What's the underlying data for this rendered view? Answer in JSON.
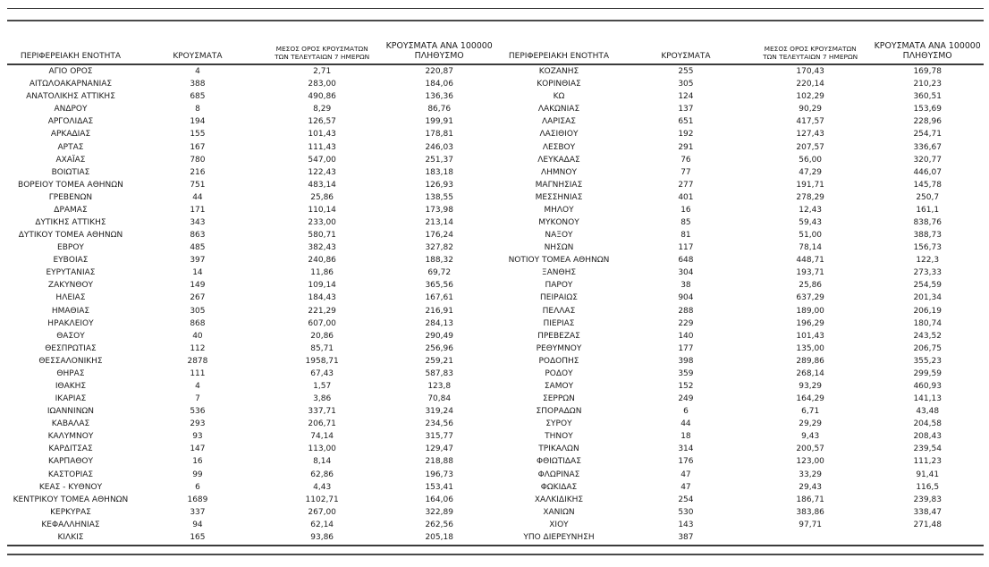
{
  "page": {
    "background_color": "#ffffff",
    "text_color": "#1c1c1c",
    "rule_color": "#3b3b3b"
  },
  "table": {
    "col_headers": [
      "ΠΕΡΙΦΕΡΕΙΑΚΗ ΕΝΟΤΗΤΑ",
      "ΚΡΟΥΣΜΑΤΑ",
      "ΜΕΣΟΣ ΟΡΟΣ ΚΡΟΥΣΜΑΤΩΝ\nΤΩΝ ΤΕΛΕΥΤΑΙΩΝ 7 ΗΜΕΡΩΝ",
      "ΚΡΟΥΣΜΑΤΑ ΑΝΑ 100000\nΠΛΗΘΥΣΜΟ"
    ],
    "left_rows": [
      [
        "ΑΓΙΟ ΟΡΟΣ",
        "4",
        "2,71",
        "220,87"
      ],
      [
        "ΑΙΤΩΛΟΑΚΑΡΝΑΝΙΑΣ",
        "388",
        "283,00",
        "184,06"
      ],
      [
        "ΑΝΑΤΟΛΙΚΗΣ ΑΤΤΙΚΗΣ",
        "685",
        "490,86",
        "136,36"
      ],
      [
        "ΑΝΔΡΟΥ",
        "8",
        "8,29",
        "86,76"
      ],
      [
        "ΑΡΓΟΛΙΔΑΣ",
        "194",
        "126,57",
        "199,91"
      ],
      [
        "ΑΡΚΑΔΙΑΣ",
        "155",
        "101,43",
        "178,81"
      ],
      [
        "ΑΡΤΑΣ",
        "167",
        "111,43",
        "246,03"
      ],
      [
        "ΑΧΑΪΑΣ",
        "780",
        "547,00",
        "251,37"
      ],
      [
        "ΒΟΙΩΤΙΑΣ",
        "216",
        "122,43",
        "183,18"
      ],
      [
        "ΒΟΡΕΙΟΥ ΤΟΜΕΑ ΑΘΗΝΩΝ",
        "751",
        "483,14",
        "126,93"
      ],
      [
        "ΓΡΕΒΕΝΩΝ",
        "44",
        "25,86",
        "138,55"
      ],
      [
        "ΔΡΑΜΑΣ",
        "171",
        "110,14",
        "173,98"
      ],
      [
        "ΔΥΤΙΚΗΣ ΑΤΤΙΚΗΣ",
        "343",
        "233,00",
        "213,14"
      ],
      [
        "ΔΥΤΙΚΟΥ ΤΟΜΕΑ ΑΘΗΝΩΝ",
        "863",
        "580,71",
        "176,24"
      ],
      [
        "ΕΒΡΟΥ",
        "485",
        "382,43",
        "327,82"
      ],
      [
        "ΕΥΒΟΙΑΣ",
        "397",
        "240,86",
        "188,32"
      ],
      [
        "ΕΥΡΥΤΑΝΙΑΣ",
        "14",
        "11,86",
        "69,72"
      ],
      [
        "ΖΑΚΥΝΘΟΥ",
        "149",
        "109,14",
        "365,56"
      ],
      [
        "ΗΛΕΙΑΣ",
        "267",
        "184,43",
        "167,61"
      ],
      [
        "ΗΜΑΘΙΑΣ",
        "305",
        "221,29",
        "216,91"
      ],
      [
        "ΗΡΑΚΛΕΙΟΥ",
        "868",
        "607,00",
        "284,13"
      ],
      [
        "ΘΑΣΟΥ",
        "40",
        "20,86",
        "290,49"
      ],
      [
        "ΘΕΣΠΡΩΤΙΑΣ",
        "112",
        "85,71",
        "256,96"
      ],
      [
        "ΘΕΣΣΑΛΟΝΙΚΗΣ",
        "2878",
        "1958,71",
        "259,21"
      ],
      [
        "ΘΗΡΑΣ",
        "111",
        "67,43",
        "587,83"
      ],
      [
        "ΙΘΑΚΗΣ",
        "4",
        "1,57",
        "123,8"
      ],
      [
        "ΙΚΑΡΙΑΣ",
        "7",
        "3,86",
        "70,84"
      ],
      [
        "ΙΩΑΝΝΙΝΩΝ",
        "536",
        "337,71",
        "319,24"
      ],
      [
        "ΚΑΒΑΛΑΣ",
        "293",
        "206,71",
        "234,56"
      ],
      [
        "ΚΑΛΥΜΝΟΥ",
        "93",
        "74,14",
        "315,77"
      ],
      [
        "ΚΑΡΔΙΤΣΑΣ",
        "147",
        "113,00",
        "129,47"
      ],
      [
        "ΚΑΡΠΑΘΟΥ",
        "16",
        "8,14",
        "218,88"
      ],
      [
        "ΚΑΣΤΟΡΙΑΣ",
        "99",
        "62,86",
        "196,73"
      ],
      [
        "ΚΕΑΣ - ΚΥΘΝΟΥ",
        "6",
        "4,43",
        "153,41"
      ],
      [
        "ΚΕΝΤΡΙΚΟΥ ΤΟΜΕΑ ΑΘΗΝΩΝ",
        "1689",
        "1102,71",
        "164,06"
      ],
      [
        "ΚΕΡΚΥΡΑΣ",
        "337",
        "267,00",
        "322,89"
      ],
      [
        "ΚΕΦΑΛΛΗΝΙΑΣ",
        "94",
        "62,14",
        "262,56"
      ],
      [
        "ΚΙΛΚΙΣ",
        "165",
        "93,86",
        "205,18"
      ]
    ],
    "right_rows": [
      [
        "ΚΟΖΑΝΗΣ",
        "255",
        "170,43",
        "169,78"
      ],
      [
        "ΚΟΡΙΝΘΙΑΣ",
        "305",
        "220,14",
        "210,23"
      ],
      [
        "ΚΩ",
        "124",
        "102,29",
        "360,51"
      ],
      [
        "ΛΑΚΩΝΙΑΣ",
        "137",
        "90,29",
        "153,69"
      ],
      [
        "ΛΑΡΙΣΑΣ",
        "651",
        "417,57",
        "228,96"
      ],
      [
        "ΛΑΣΙΘΙΟΥ",
        "192",
        "127,43",
        "254,71"
      ],
      [
        "ΛΕΣΒΟΥ",
        "291",
        "207,57",
        "336,67"
      ],
      [
        "ΛΕΥΚΑΔΑΣ",
        "76",
        "56,00",
        "320,77"
      ],
      [
        "ΛΗΜΝΟΥ",
        "77",
        "47,29",
        "446,07"
      ],
      [
        "ΜΑΓΝΗΣΙΑΣ",
        "277",
        "191,71",
        "145,78"
      ],
      [
        "ΜΕΣΣΗΝΙΑΣ",
        "401",
        "278,29",
        "250,7"
      ],
      [
        "ΜΗΛΟΥ",
        "16",
        "12,43",
        "161,1"
      ],
      [
        "ΜΥΚΟΝΟΥ",
        "85",
        "59,43",
        "838,76"
      ],
      [
        "ΝΑΞΟΥ",
        "81",
        "51,00",
        "388,73"
      ],
      [
        "ΝΗΣΩΝ",
        "117",
        "78,14",
        "156,73"
      ],
      [
        "ΝΟΤΙΟΥ ΤΟΜΕΑ ΑΘΗΝΩΝ",
        "648",
        "448,71",
        "122,3"
      ],
      [
        "ΞΑΝΘΗΣ",
        "304",
        "193,71",
        "273,33"
      ],
      [
        "ΠΑΡΟΥ",
        "38",
        "25,86",
        "254,59"
      ],
      [
        "ΠΕΙΡΑΙΩΣ",
        "904",
        "637,29",
        "201,34"
      ],
      [
        "ΠΕΛΛΑΣ",
        "288",
        "189,00",
        "206,19"
      ],
      [
        "ΠΙΕΡΙΑΣ",
        "229",
        "196,29",
        "180,74"
      ],
      [
        "ΠΡΕΒΕΖΑΣ",
        "140",
        "101,43",
        "243,52"
      ],
      [
        "ΡΕΘΥΜΝΟΥ",
        "177",
        "135,00",
        "206,75"
      ],
      [
        "ΡΟΔΟΠΗΣ",
        "398",
        "289,86",
        "355,23"
      ],
      [
        "ΡΟΔΟΥ",
        "359",
        "268,14",
        "299,59"
      ],
      [
        "ΣΑΜΟΥ",
        "152",
        "93,29",
        "460,93"
      ],
      [
        "ΣΕΡΡΩΝ",
        "249",
        "164,29",
        "141,13"
      ],
      [
        "ΣΠΟΡΑΔΩΝ",
        "6",
        "6,71",
        "43,48"
      ],
      [
        "ΣΥΡΟΥ",
        "44",
        "29,29",
        "204,58"
      ],
      [
        "ΤΗΝΟΥ",
        "18",
        "9,43",
        "208,43"
      ],
      [
        "ΤΡΙΚΑΛΩΝ",
        "314",
        "200,57",
        "239,54"
      ],
      [
        "ΦΘΙΩΤΙΔΑΣ",
        "176",
        "123,00",
        "111,23"
      ],
      [
        "ΦΛΩΡΙΝΑΣ",
        "47",
        "33,29",
        "91,41"
      ],
      [
        "ΦΩΚΙΔΑΣ",
        "47",
        "29,43",
        "116,5"
      ],
      [
        "ΧΑΛΚΙΔΙΚΗΣ",
        "254",
        "186,71",
        "239,83"
      ],
      [
        "ΧΑΝΙΩΝ",
        "530",
        "383,86",
        "338,47"
      ],
      [
        "ΧΙΟΥ",
        "143",
        "97,71",
        "271,48"
      ],
      [
        "ΥΠΟ ΔΙΕΡΕΥΝΗΣΗ",
        "387",
        "",
        ""
      ]
    ]
  }
}
